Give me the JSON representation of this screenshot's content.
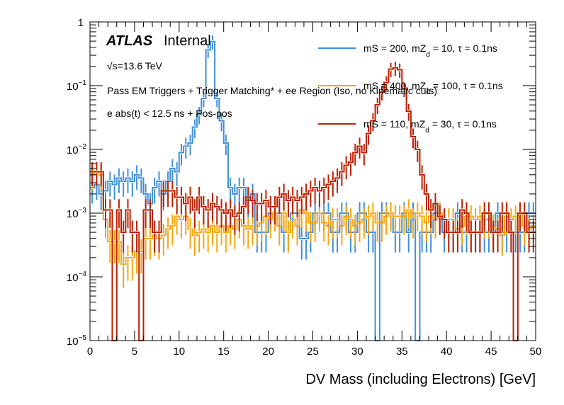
{
  "chart_data": {
    "type": "line",
    "style": "step-histogram with error bars",
    "title": "",
    "xlabel": "DV Mass (including Electrons) [GeV]",
    "ylabel": "",
    "xlim": [
      0,
      50
    ],
    "ylim": [
      1e-05,
      1
    ],
    "ylog": true,
    "bin_width": 0.5,
    "x_ticks": [
      "0",
      "5",
      "10",
      "15",
      "20",
      "25",
      "30",
      "35",
      "40",
      "45",
      "50"
    ],
    "x_tick_values": [
      0,
      5,
      10,
      15,
      20,
      25,
      30,
      35,
      40,
      45,
      50
    ],
    "y_ticks": [
      {
        "value": 1,
        "base": "1",
        "exp": ""
      },
      {
        "value": 0.1,
        "base": "10",
        "exp": "−1"
      },
      {
        "value": 0.01,
        "base": "10",
        "exp": "−2"
      },
      {
        "value": 0.001,
        "base": "10",
        "exp": "−3"
      },
      {
        "value": 0.0001,
        "base": "10",
        "exp": "−4"
      },
      {
        "value": 1e-05,
        "base": "10",
        "exp": "−5"
      }
    ],
    "annotations": {
      "atlas": "ATLAS",
      "internal": "Internal",
      "energy": "√s=13.6 TeV",
      "selection1": "Pass EM Triggers + Trigger Matching* + ee Region (Iso, no Kinematic cuts)",
      "selection2": "e abs(t) < 12.5 ns + Pos-pos"
    },
    "legend_position": "top-right",
    "series": [
      {
        "name": "mS = 200, mZd = 10, τ = 0.1ns",
        "legend_main": "mS = 200, mZ",
        "legend_sub": "d",
        "legend_rest": " = 10, τ = 0.1ns",
        "color": "#3f90da",
        "log10_values": [
          -2.6,
          -2.55,
          -2.7,
          -2.65,
          -2.5,
          -2.55,
          -2.45,
          -2.5,
          -2.45,
          -2.5,
          -2.4,
          -2.45,
          -2.7,
          -2.85,
          -2.6,
          -2.5,
          -2.7,
          -2.5,
          -2.3,
          -2.35,
          -2.05,
          -1.95,
          -1.9,
          -1.65,
          -1.45,
          -1.2,
          -0.44,
          -0.31,
          -1.2,
          -1.55,
          -1.9,
          -2.6,
          -2.7,
          -2.6,
          -2.6,
          -2.8,
          -2.7,
          -3.3,
          -3.3,
          -3.3,
          -3.0,
          -3.0,
          -3.0,
          -3.3,
          -3.3,
          -3.0,
          -3.0,
          -3.4,
          -3.4,
          -3.3,
          -3.0,
          -3.0,
          -3.0,
          -3.0,
          -3.3,
          -3.3,
          -3.0,
          -3.0,
          -3.3,
          -3.3,
          -3.0,
          -3.0,
          -3.3,
          -3.3,
          -5.0,
          -3.0,
          -3.0,
          -3.0,
          -3.3,
          -3.3,
          -3.0,
          -3.3,
          -3.0,
          -5.0,
          -3.3,
          -3.3,
          -3.3,
          -3.0,
          -3.0,
          -3.3,
          -3.3,
          -3.3,
          -3.0,
          -3.3,
          -3.3,
          -3.3,
          -3.3,
          -3.3,
          -3.3,
          -3.3,
          -3.3,
          -3.0,
          -3.3,
          -3.3,
          -3.3,
          -3.3,
          -3.3,
          -3.3,
          -3.0,
          -3.0
        ]
      },
      {
        "name": "mS = 400, mZd = 100, τ = 0.1ns",
        "legend_main": "mS = 400, mZ",
        "legend_sub": "d",
        "legend_rest": " = 100, τ = 0.1ns",
        "color": "#f7a70f",
        "log10_values": [
          -2.4,
          -2.35,
          -2.4,
          -3.1,
          -3.45,
          -3.45,
          -3.45,
          -3.8,
          -3.7,
          -3.7,
          -3.6,
          -3.6,
          -3.4,
          -3.4,
          -3.35,
          -3.4,
          -3.35,
          -3.25,
          -3.2,
          -3.05,
          -3.1,
          -3.05,
          -3.25,
          -3.35,
          -3.3,
          -3.25,
          -3.3,
          -3.2,
          -3.3,
          -3.2,
          -3.3,
          -3.2,
          -3.25,
          -3.1,
          -3.2,
          -3.25,
          -3.2,
          -3.2,
          -3.15,
          -3.05,
          -3.1,
          -3.0,
          -3.2,
          -3.0,
          -3.3,
          -3.1,
          -3.2,
          -2.95,
          -3.0,
          -3.15,
          -3.15,
          -3.0,
          -3.15,
          -3.2,
          -3.1,
          -3.1,
          -3.2,
          -3.05,
          -3.1,
          -3.2,
          -3.15,
          -3.1,
          -3.05,
          -3.0,
          -3.15,
          -3.15,
          -3.05,
          -3.0,
          -3.05,
          -3.05,
          -3.05,
          -2.95,
          -3.1,
          -3.0,
          -3.05,
          -3.15,
          -3.05,
          -3.1,
          -3.0,
          -3.1,
          -3.1,
          -3.1,
          -3.25,
          -3.2,
          -3.05,
          -3.05,
          -3.1,
          -3.05,
          -3.1,
          -3.1,
          -3.2,
          -3.25,
          -3.35,
          -3.05,
          -3.1,
          -3.05,
          -3.0,
          -3.2,
          -3.25,
          -3.2
        ]
      },
      {
        "name": "mS = 110, mZd = 30, τ = 0.1ns",
        "legend_main": "mS = 110, mZ",
        "legend_sub": "d",
        "legend_rest": " = 30, τ = 0.1ns",
        "color": "#bd1f01",
        "log10_values": [
          -2.35,
          -2.35,
          -2.35,
          -2.95,
          -2.95,
          -5.0,
          -2.95,
          -3.3,
          -2.95,
          -3.3,
          -3.3,
          -5.0,
          -2.95,
          -2.95,
          -3.3,
          -3.3,
          -2.65,
          -2.65,
          -2.65,
          -2.75,
          -2.75,
          -2.85,
          -2.75,
          -2.95,
          -2.75,
          -2.9,
          -2.95,
          -2.85,
          -2.9,
          -2.95,
          -3.0,
          -2.95,
          -3.05,
          -3.0,
          -2.9,
          -2.75,
          -2.8,
          -2.85,
          -2.85,
          -2.8,
          -2.9,
          -2.9,
          -2.75,
          -2.7,
          -2.8,
          -2.75,
          -2.8,
          -2.75,
          -2.7,
          -2.65,
          -2.6,
          -2.65,
          -2.6,
          -2.55,
          -2.5,
          -2.45,
          -2.35,
          -2.25,
          -2.2,
          -2.05,
          -1.95,
          -2.05,
          -1.75,
          -1.55,
          -1.3,
          -1.1,
          -0.95,
          -0.74,
          -0.72,
          -0.75,
          -1.05,
          -1.4,
          -1.8,
          -2.0,
          -2.4,
          -2.7,
          -2.95,
          -2.85,
          -3.05,
          -3.1,
          -3.3,
          -3.3,
          -3.3,
          -2.95,
          -3.0,
          -3.3,
          -3.3,
          -3.3,
          -3.0,
          -3.0,
          -3.3,
          -3.3,
          -3.0,
          -3.0,
          -3.3,
          -5.0,
          -3.0,
          -3.0,
          -3.3,
          -3.3
        ]
      }
    ]
  }
}
